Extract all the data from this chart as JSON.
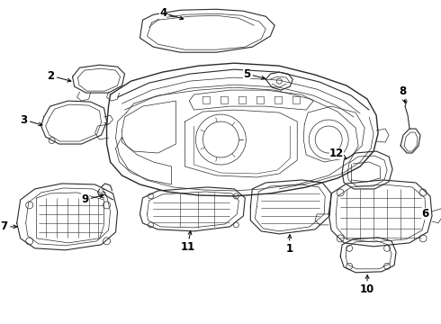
{
  "bg_color": "#ffffff",
  "line_color": "#2a2a2a",
  "label_color": "#000000",
  "fig_width": 4.9,
  "fig_height": 3.6,
  "dpi": 100
}
